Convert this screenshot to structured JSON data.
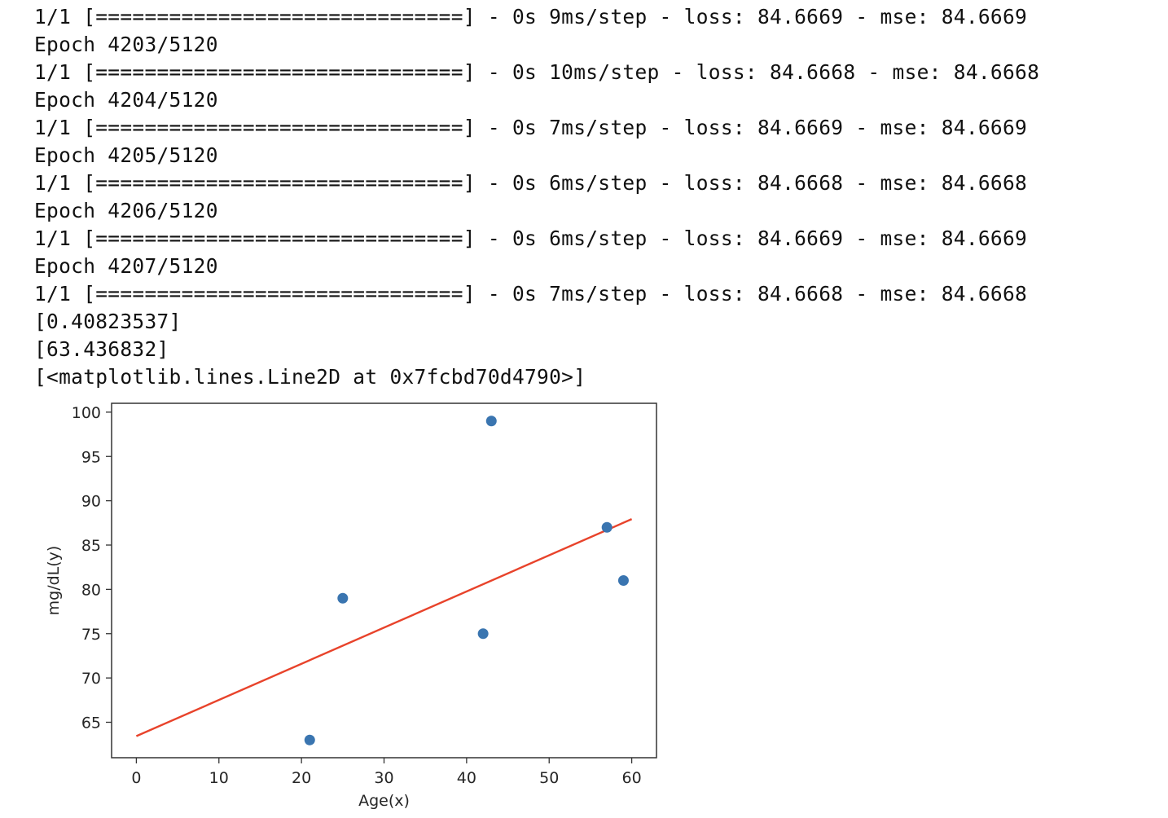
{
  "console": {
    "lines": [
      "1/1 [==============================] - 0s 9ms/step - loss: 84.6669 - mse: 84.6669",
      "Epoch 4203/5120",
      "1/1 [==============================] - 0s 10ms/step - loss: 84.6668 - mse: 84.6668",
      "Epoch 4204/5120",
      "1/1 [==============================] - 0s 7ms/step - loss: 84.6669 - mse: 84.6669",
      "Epoch 4205/5120",
      "1/1 [==============================] - 0s 6ms/step - loss: 84.6668 - mse: 84.6668",
      "Epoch 4206/5120",
      "1/1 [==============================] - 0s 6ms/step - loss: 84.6669 - mse: 84.6669",
      "Epoch 4207/5120",
      "1/1 [==============================] - 0s 7ms/step - loss: 84.6668 - mse: 84.6668",
      "[0.40823537]",
      "[63.436832]",
      "[<matplotlib.lines.Line2D at 0x7fcbd70d4790>]"
    ]
  },
  "chart_data": {
    "type": "scatter",
    "title": "",
    "xlabel": "Age(x)",
    "ylabel": "mg/dL(y)",
    "xlim": [
      -3,
      63
    ],
    "ylim": [
      61,
      101
    ],
    "xticks": [
      0,
      10,
      20,
      30,
      40,
      50,
      60
    ],
    "yticks": [
      65,
      70,
      75,
      80,
      85,
      90,
      95,
      100
    ],
    "grid": false,
    "points": {
      "x": [
        21,
        25,
        42,
        43,
        57,
        59
      ],
      "y": [
        63,
        79,
        75,
        99,
        87,
        81
      ],
      "color": "#3a75b0"
    },
    "fit_line": {
      "x": [
        0,
        60
      ],
      "y": [
        63.436832,
        87.93095
      ],
      "color": "#e8432b"
    }
  }
}
